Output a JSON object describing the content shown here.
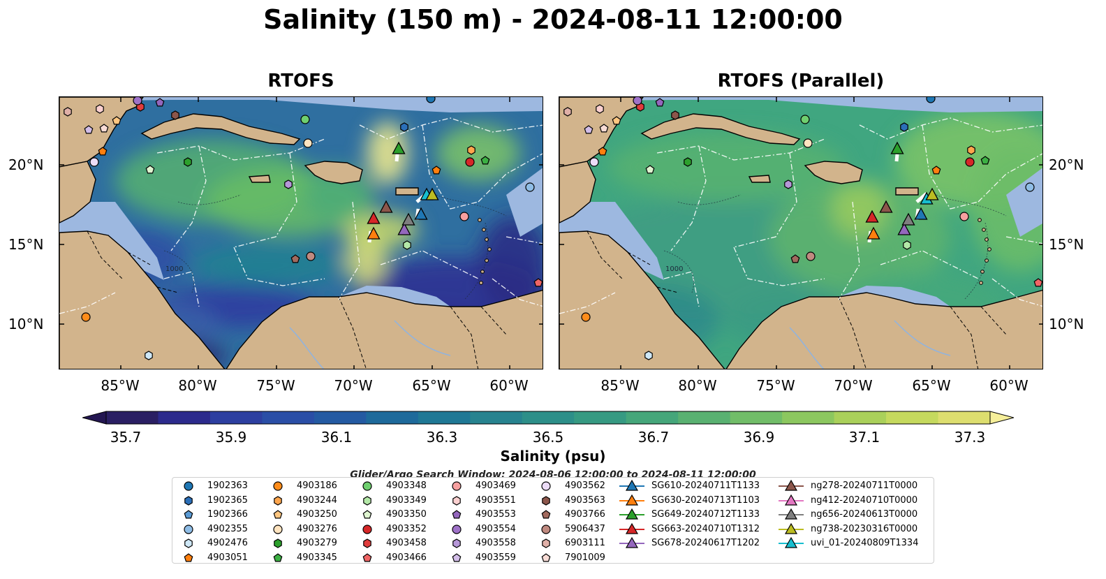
{
  "title": "Salinity (150 m) - 2024-08-11 12:00:00",
  "panels": [
    {
      "title": "RTOFS",
      "variant": "rtofs"
    },
    {
      "title": "RTOFS (Parallel)",
      "variant": "parallel"
    }
  ],
  "lat_labels": [
    "20°N",
    "15°N",
    "10°N"
  ],
  "lon_labels": [
    "85°W",
    "80°W",
    "75°W",
    "70°W",
    "65°W",
    "60°W"
  ],
  "contour_label": "1000",
  "colorbar": {
    "label": "Salinity (psu)",
    "ticks": [
      "35.7",
      "35.9",
      "36.1",
      "36.3",
      "36.5",
      "36.7",
      "36.9",
      "37.1",
      "37.3"
    ],
    "colors": [
      "#2a1f63",
      "#2c2a8c",
      "#2d3fa0",
      "#2a4ea6",
      "#245aa2",
      "#1e6a9b",
      "#1f7895",
      "#27838f",
      "#2d8f89",
      "#369a82",
      "#45a67a",
      "#59b171",
      "#71bd68",
      "#8cc75f",
      "#aad05a",
      "#c5d95e",
      "#ddde6f"
    ],
    "under_color": "#231651",
    "over_color": "#f6ef9a"
  },
  "search_window": "Glider/Argo Search Window: 2024-08-06 12:00:00 to 2024-08-11 12:00:00",
  "legend": {
    "floats": [
      {
        "id": "1902363",
        "shape": "circle",
        "color": "#1f77b4"
      },
      {
        "id": "1902365",
        "shape": "hexagon",
        "color": "#2b6fb8"
      },
      {
        "id": "1902366",
        "shape": "pentagon",
        "color": "#5b9bd5"
      },
      {
        "id": "4902355",
        "shape": "circle",
        "color": "#8fbde6"
      },
      {
        "id": "4902476",
        "shape": "hexagon",
        "color": "#cfe8f7"
      },
      {
        "id": "4903051",
        "shape": "pentagon",
        "color": "#ff7f0e"
      },
      {
        "id": "4903186",
        "shape": "circle",
        "color": "#ff8c1a"
      },
      {
        "id": "4903244",
        "shape": "hexagon",
        "color": "#ffa64d"
      },
      {
        "id": "4903250",
        "shape": "pentagon",
        "color": "#ffc680"
      },
      {
        "id": "4903276",
        "shape": "circle",
        "color": "#ffe4c0"
      },
      {
        "id": "4903279",
        "shape": "hexagon",
        "color": "#2ca02c"
      },
      {
        "id": "4903345",
        "shape": "pentagon",
        "color": "#3cb043"
      },
      {
        "id": "4903348",
        "shape": "circle",
        "color": "#6fcf6f"
      },
      {
        "id": "4903349",
        "shape": "hexagon",
        "color": "#b4e8a8"
      },
      {
        "id": "4903350",
        "shape": "pentagon",
        "color": "#dff5d0"
      },
      {
        "id": "4903352",
        "shape": "circle",
        "color": "#d62728"
      },
      {
        "id": "4903458",
        "shape": "hexagon",
        "color": "#e03c3c"
      },
      {
        "id": "4903466",
        "shape": "pentagon",
        "color": "#f06565"
      },
      {
        "id": "4903469",
        "shape": "circle",
        "color": "#f7a0a0"
      },
      {
        "id": "4903551",
        "shape": "hexagon",
        "color": "#fbd0d0"
      },
      {
        "id": "4903553",
        "shape": "pentagon",
        "color": "#9467bd"
      },
      {
        "id": "4903554",
        "shape": "circle",
        "color": "#9f72c8"
      },
      {
        "id": "4903558",
        "shape": "hexagon",
        "color": "#b697d8"
      },
      {
        "id": "4903559",
        "shape": "pentagon",
        "color": "#d2bde8"
      },
      {
        "id": "4903562",
        "shape": "circle",
        "color": "#ecdcf7"
      },
      {
        "id": "4903563",
        "shape": "hexagon",
        "color": "#8c564b"
      },
      {
        "id": "4903766",
        "shape": "pentagon",
        "color": "#a26a5e"
      },
      {
        "id": "5906437",
        "shape": "circle",
        "color": "#c08a80"
      },
      {
        "id": "6903111",
        "shape": "hexagon",
        "color": "#e0b0a8"
      },
      {
        "id": "7901009",
        "shape": "pentagon",
        "color": "#f8dcd6"
      }
    ],
    "gliders": [
      {
        "id": "SG610-20240711T1133",
        "color": "#1f77b4"
      },
      {
        "id": "SG630-20240713T1103",
        "color": "#ff7f0e"
      },
      {
        "id": "SG649-20240712T1133",
        "color": "#2ca02c"
      },
      {
        "id": "SG663-20240710T1312",
        "color": "#d62728"
      },
      {
        "id": "SG678-20240617T1202",
        "color": "#9467bd"
      },
      {
        "id": "ng278-20240711T0000",
        "color": "#8c564b"
      },
      {
        "id": "ng412-20240710T0000",
        "color": "#e377c2"
      },
      {
        "id": "ng656-20240613T0000",
        "color": "#7f7f7f"
      },
      {
        "id": "ng738-20230316T0000",
        "color": "#bcbd22"
      },
      {
        "id": "uvi_01-20240809T1334",
        "color": "#17becf"
      }
    ]
  }
}
